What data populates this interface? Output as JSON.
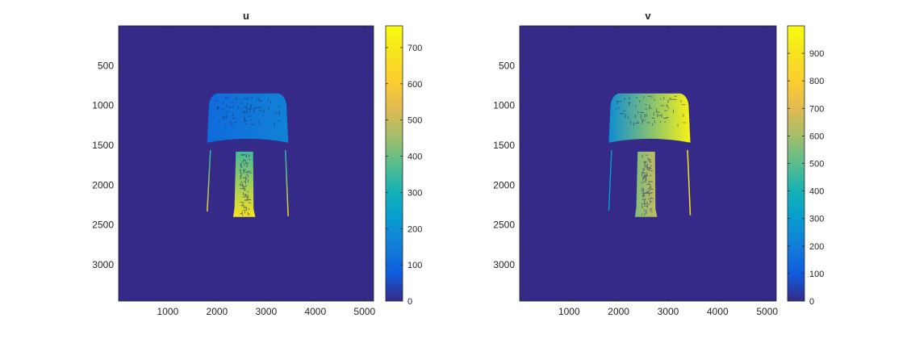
{
  "chart_data": [
    {
      "type": "heatmap",
      "title": "u",
      "xlabel": "",
      "ylabel": "",
      "xlim": [
        1,
        5184
      ],
      "ylim": [
        3456,
        1
      ],
      "x_ticks": [
        "1000",
        "2000",
        "3000",
        "4000",
        "5000"
      ],
      "y_ticks": [
        "500",
        "1000",
        "1500",
        "2000",
        "2500",
        "3000"
      ],
      "x_tick_values": [
        1000,
        2000,
        3000,
        4000,
        5000
      ],
      "y_tick_values": [
        500,
        1000,
        1500,
        2000,
        2500,
        3000
      ],
      "background_value": 0,
      "colormap": "parula",
      "colorbar": {
        "limits": [
          0,
          760
        ],
        "ticks": [
          "0",
          "100",
          "200",
          "300",
          "400",
          "500",
          "600",
          "700"
        ],
        "tick_values": [
          0,
          100,
          200,
          300,
          400,
          500,
          600,
          700
        ]
      },
      "regions": [
        {
          "name": "cap",
          "x_range": [
            1800,
            3450
          ],
          "y_range": [
            850,
            1500
          ],
          "value_left": 110,
          "value_right": 165,
          "value_top": 95,
          "value_bottom": 185
        },
        {
          "name": "left-leg",
          "x_range": [
            1790,
            1880
          ],
          "y_range": [
            1560,
            2330
          ],
          "value_top": 320,
          "value_bottom": 640
        },
        {
          "name": "right-leg",
          "x_range": [
            3380,
            3460
          ],
          "y_range": [
            1560,
            2390
          ],
          "value_top": 320,
          "value_bottom": 650
        },
        {
          "name": "stem",
          "x_range": [
            2330,
            2780
          ],
          "y_range": [
            1580,
            2400
          ],
          "value_top": 360,
          "value_bottom": 680
        }
      ]
    },
    {
      "type": "heatmap",
      "title": "v",
      "xlabel": "",
      "ylabel": "",
      "xlim": [
        1,
        5184
      ],
      "ylim": [
        3456,
        1
      ],
      "x_ticks": [
        "1000",
        "2000",
        "3000",
        "4000",
        "5000"
      ],
      "y_ticks": [
        "500",
        "1000",
        "1500",
        "2000",
        "2500",
        "3000"
      ],
      "x_tick_values": [
        1000,
        2000,
        3000,
        4000,
        5000
      ],
      "y_tick_values": [
        500,
        1000,
        1500,
        2000,
        2500,
        3000
      ],
      "background_value": 0,
      "colormap": "parula",
      "colorbar": {
        "limits": [
          0,
          1000
        ],
        "ticks": [
          "0",
          "100",
          "200",
          "300",
          "400",
          "500",
          "600",
          "700",
          "800",
          "900"
        ],
        "tick_values": [
          0,
          100,
          200,
          300,
          400,
          500,
          600,
          700,
          800,
          900
        ]
      },
      "regions": [
        {
          "name": "cap",
          "x_range": [
            1800,
            3450
          ],
          "y_range": [
            850,
            1500
          ],
          "value_left": 250,
          "value_right": 960
        },
        {
          "name": "left-leg",
          "x_range": [
            1790,
            1870
          ],
          "y_range": [
            1560,
            2320
          ],
          "value_left": 280,
          "value_right": 290
        },
        {
          "name": "right-leg",
          "x_range": [
            3380,
            3460
          ],
          "y_range": [
            1560,
            2380
          ],
          "value_left": 900,
          "value_right": 910
        },
        {
          "name": "stem",
          "x_range": [
            2330,
            2780
          ],
          "y_range": [
            1580,
            2400
          ],
          "value_left": 550,
          "value_right": 650
        }
      ]
    }
  ]
}
